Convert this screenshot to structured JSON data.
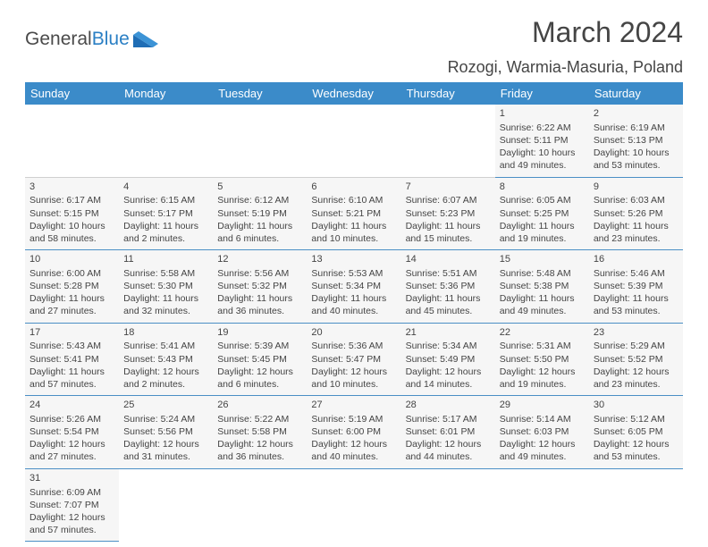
{
  "logo": {
    "text_general": "General",
    "text_blue": "Blue"
  },
  "header": {
    "month_title": "March 2024",
    "location": "Rozogi, Warmia-Masuria, Poland"
  },
  "colors": {
    "header_bg": "#3b8bc9",
    "header_fg": "#ffffff",
    "cell_bg": "#f6f6f6",
    "cell_border": "#4b8fc5",
    "text": "#454545",
    "logo_blue": "#2a7fc4"
  },
  "day_labels": [
    "Sunday",
    "Monday",
    "Tuesday",
    "Wednesday",
    "Thursday",
    "Friday",
    "Saturday"
  ],
  "weeks": [
    [
      null,
      null,
      null,
      null,
      null,
      {
        "n": "1",
        "sr": "Sunrise: 6:22 AM",
        "ss": "Sunset: 5:11 PM",
        "d1": "Daylight: 10 hours",
        "d2": "and 49 minutes."
      },
      {
        "n": "2",
        "sr": "Sunrise: 6:19 AM",
        "ss": "Sunset: 5:13 PM",
        "d1": "Daylight: 10 hours",
        "d2": "and 53 minutes."
      }
    ],
    [
      {
        "n": "3",
        "sr": "Sunrise: 6:17 AM",
        "ss": "Sunset: 5:15 PM",
        "d1": "Daylight: 10 hours",
        "d2": "and 58 minutes."
      },
      {
        "n": "4",
        "sr": "Sunrise: 6:15 AM",
        "ss": "Sunset: 5:17 PM",
        "d1": "Daylight: 11 hours",
        "d2": "and 2 minutes."
      },
      {
        "n": "5",
        "sr": "Sunrise: 6:12 AM",
        "ss": "Sunset: 5:19 PM",
        "d1": "Daylight: 11 hours",
        "d2": "and 6 minutes."
      },
      {
        "n": "6",
        "sr": "Sunrise: 6:10 AM",
        "ss": "Sunset: 5:21 PM",
        "d1": "Daylight: 11 hours",
        "d2": "and 10 minutes."
      },
      {
        "n": "7",
        "sr": "Sunrise: 6:07 AM",
        "ss": "Sunset: 5:23 PM",
        "d1": "Daylight: 11 hours",
        "d2": "and 15 minutes."
      },
      {
        "n": "8",
        "sr": "Sunrise: 6:05 AM",
        "ss": "Sunset: 5:25 PM",
        "d1": "Daylight: 11 hours",
        "d2": "and 19 minutes."
      },
      {
        "n": "9",
        "sr": "Sunrise: 6:03 AM",
        "ss": "Sunset: 5:26 PM",
        "d1": "Daylight: 11 hours",
        "d2": "and 23 minutes."
      }
    ],
    [
      {
        "n": "10",
        "sr": "Sunrise: 6:00 AM",
        "ss": "Sunset: 5:28 PM",
        "d1": "Daylight: 11 hours",
        "d2": "and 27 minutes."
      },
      {
        "n": "11",
        "sr": "Sunrise: 5:58 AM",
        "ss": "Sunset: 5:30 PM",
        "d1": "Daylight: 11 hours",
        "d2": "and 32 minutes."
      },
      {
        "n": "12",
        "sr": "Sunrise: 5:56 AM",
        "ss": "Sunset: 5:32 PM",
        "d1": "Daylight: 11 hours",
        "d2": "and 36 minutes."
      },
      {
        "n": "13",
        "sr": "Sunrise: 5:53 AM",
        "ss": "Sunset: 5:34 PM",
        "d1": "Daylight: 11 hours",
        "d2": "and 40 minutes."
      },
      {
        "n": "14",
        "sr": "Sunrise: 5:51 AM",
        "ss": "Sunset: 5:36 PM",
        "d1": "Daylight: 11 hours",
        "d2": "and 45 minutes."
      },
      {
        "n": "15",
        "sr": "Sunrise: 5:48 AM",
        "ss": "Sunset: 5:38 PM",
        "d1": "Daylight: 11 hours",
        "d2": "and 49 minutes."
      },
      {
        "n": "16",
        "sr": "Sunrise: 5:46 AM",
        "ss": "Sunset: 5:39 PM",
        "d1": "Daylight: 11 hours",
        "d2": "and 53 minutes."
      }
    ],
    [
      {
        "n": "17",
        "sr": "Sunrise: 5:43 AM",
        "ss": "Sunset: 5:41 PM",
        "d1": "Daylight: 11 hours",
        "d2": "and 57 minutes."
      },
      {
        "n": "18",
        "sr": "Sunrise: 5:41 AM",
        "ss": "Sunset: 5:43 PM",
        "d1": "Daylight: 12 hours",
        "d2": "and 2 minutes."
      },
      {
        "n": "19",
        "sr": "Sunrise: 5:39 AM",
        "ss": "Sunset: 5:45 PM",
        "d1": "Daylight: 12 hours",
        "d2": "and 6 minutes."
      },
      {
        "n": "20",
        "sr": "Sunrise: 5:36 AM",
        "ss": "Sunset: 5:47 PM",
        "d1": "Daylight: 12 hours",
        "d2": "and 10 minutes."
      },
      {
        "n": "21",
        "sr": "Sunrise: 5:34 AM",
        "ss": "Sunset: 5:49 PM",
        "d1": "Daylight: 12 hours",
        "d2": "and 14 minutes."
      },
      {
        "n": "22",
        "sr": "Sunrise: 5:31 AM",
        "ss": "Sunset: 5:50 PM",
        "d1": "Daylight: 12 hours",
        "d2": "and 19 minutes."
      },
      {
        "n": "23",
        "sr": "Sunrise: 5:29 AM",
        "ss": "Sunset: 5:52 PM",
        "d1": "Daylight: 12 hours",
        "d2": "and 23 minutes."
      }
    ],
    [
      {
        "n": "24",
        "sr": "Sunrise: 5:26 AM",
        "ss": "Sunset: 5:54 PM",
        "d1": "Daylight: 12 hours",
        "d2": "and 27 minutes."
      },
      {
        "n": "25",
        "sr": "Sunrise: 5:24 AM",
        "ss": "Sunset: 5:56 PM",
        "d1": "Daylight: 12 hours",
        "d2": "and 31 minutes."
      },
      {
        "n": "26",
        "sr": "Sunrise: 5:22 AM",
        "ss": "Sunset: 5:58 PM",
        "d1": "Daylight: 12 hours",
        "d2": "and 36 minutes."
      },
      {
        "n": "27",
        "sr": "Sunrise: 5:19 AM",
        "ss": "Sunset: 6:00 PM",
        "d1": "Daylight: 12 hours",
        "d2": "and 40 minutes."
      },
      {
        "n": "28",
        "sr": "Sunrise: 5:17 AM",
        "ss": "Sunset: 6:01 PM",
        "d1": "Daylight: 12 hours",
        "d2": "and 44 minutes."
      },
      {
        "n": "29",
        "sr": "Sunrise: 5:14 AM",
        "ss": "Sunset: 6:03 PM",
        "d1": "Daylight: 12 hours",
        "d2": "and 49 minutes."
      },
      {
        "n": "30",
        "sr": "Sunrise: 5:12 AM",
        "ss": "Sunset: 6:05 PM",
        "d1": "Daylight: 12 hours",
        "d2": "and 53 minutes."
      }
    ],
    [
      {
        "n": "31",
        "sr": "Sunrise: 6:09 AM",
        "ss": "Sunset: 7:07 PM",
        "d1": "Daylight: 12 hours",
        "d2": "and 57 minutes."
      },
      null,
      null,
      null,
      null,
      null,
      null
    ]
  ]
}
